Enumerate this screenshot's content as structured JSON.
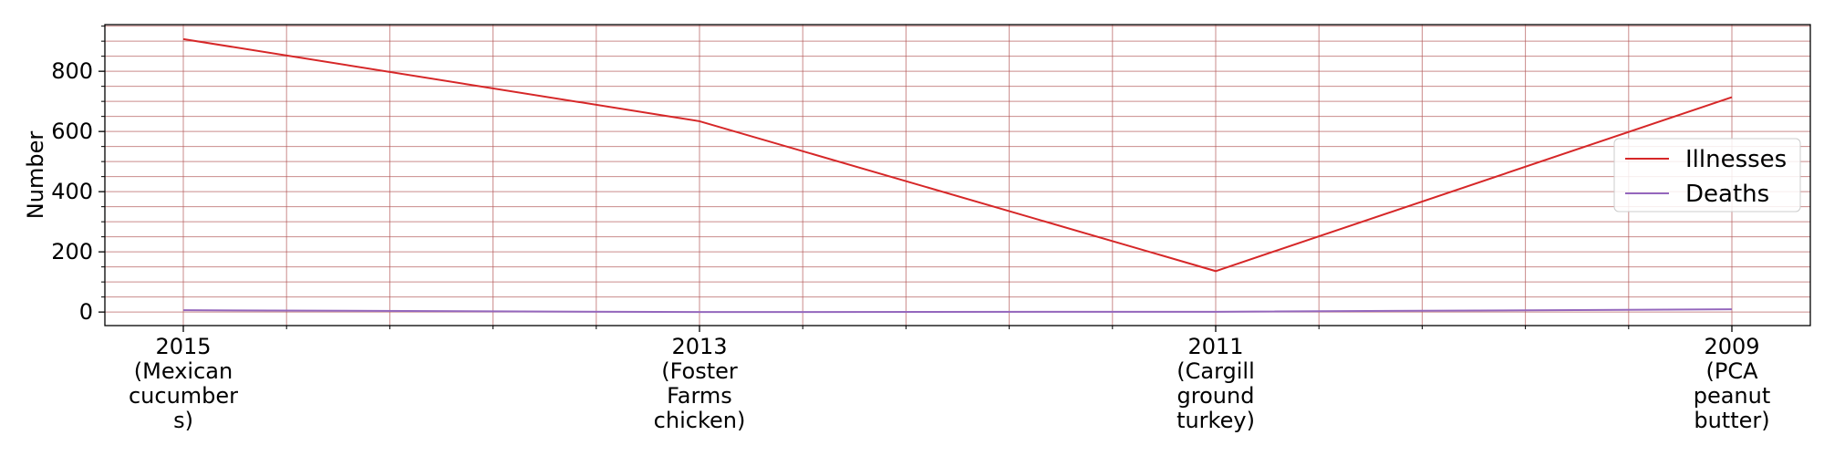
{
  "colors": {
    "illnesses": "#d62728",
    "deaths": "#9467bd",
    "grid": "#b45a5a"
  },
  "chart_data": {
    "type": "line",
    "title": "",
    "xlabel": "",
    "ylabel": "Number",
    "categories": [
      "2015\n(Mexican\ncucumber\ns)",
      "2013\n(Foster\nFarms\nchicken)",
      "2011\n(Cargill\nground\nturkey)",
      "2009\n(PCA\npeanut\nbutter)"
    ],
    "series": [
      {
        "name": "Illnesses",
        "values": [
          907,
          634,
          136,
          714
        ]
      },
      {
        "name": "Deaths",
        "values": [
          6,
          0,
          1,
          9
        ]
      }
    ],
    "ylim": [
      -45,
      955
    ],
    "y_ticks": [
      0,
      200,
      400,
      600,
      800
    ],
    "y_minor_step": 50,
    "x_minor_per_interval": 5,
    "grid": true,
    "legend_position": "center-right"
  }
}
